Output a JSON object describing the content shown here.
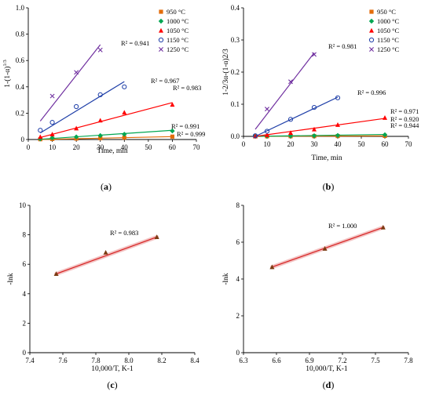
{
  "chart_data": [
    {
      "id": "a",
      "type": "scatter",
      "panel_label": "(a)",
      "panel_letter": "a",
      "xlabel": "Time, min",
      "ylabel": "1-(1-α)1/3",
      "ylabel_parts": {
        "base": "1-(1-α)",
        "sup": "1/3"
      },
      "xlim": [
        0,
        70
      ],
      "ylim": [
        0,
        1.0
      ],
      "xticks": [
        0,
        10,
        20,
        30,
        40,
        50,
        60,
        70
      ],
      "yticks": [
        0,
        0.2,
        0.4,
        0.6,
        0.8,
        1.0
      ],
      "xtick_labels": [
        "0",
        "10",
        "20",
        "30",
        "40",
        "50",
        "60",
        "70"
      ],
      "ytick_labels": [
        "0",
        "0.2",
        "0.4",
        "0.6",
        "0.8",
        "1.0"
      ],
      "grid": false,
      "legend_position": "top-right",
      "series": [
        {
          "name": "950 °C",
          "marker": "square",
          "color": "#e36c09",
          "x": [
            5,
            10,
            20,
            30,
            40,
            60
          ],
          "y": [
            0.002,
            0.004,
            0.007,
            0.01,
            0.014,
            0.022
          ],
          "fit": [
            [
              5,
              0.0
            ],
            [
              60,
              0.022
            ]
          ],
          "r2": "R² = 0.999"
        },
        {
          "name": "1000 °C",
          "marker": "diamond",
          "color": "#00a651",
          "x": [
            5,
            10,
            20,
            30,
            40,
            60
          ],
          "y": [
            0.005,
            0.012,
            0.02,
            0.03,
            0.04,
            0.065
          ],
          "fit": [
            [
              5,
              0.002
            ],
            [
              60,
              0.07
            ]
          ],
          "r2": "R² = 0.991"
        },
        {
          "name": "1050 °C",
          "marker": "triangle",
          "color": "#ff0000",
          "x": [
            5,
            10,
            20,
            30,
            40,
            60
          ],
          "y": [
            0.02,
            0.04,
            0.085,
            0.145,
            0.205,
            0.265
          ],
          "fit": [
            [
              5,
              0.015
            ],
            [
              60,
              0.28
            ]
          ],
          "r2": "R² = 0.983"
        },
        {
          "name": "1150 °C",
          "marker": "circle",
          "color": "#1f3fa8",
          "x": [
            5,
            10,
            20,
            30,
            40
          ],
          "y": [
            0.07,
            0.13,
            0.25,
            0.34,
            0.4
          ],
          "fit": [
            [
              5,
              0.05
            ],
            [
              40,
              0.44
            ]
          ],
          "r2": "R² = 0.967"
        },
        {
          "name": "1250 °C",
          "marker": "x",
          "color": "#7030a0",
          "x": [
            10,
            20,
            30
          ],
          "y": [
            0.33,
            0.51,
            0.68
          ],
          "fit": [
            [
              5,
              0.14
            ],
            [
              30,
              0.72
            ]
          ],
          "r2": "R² = 0.941"
        }
      ]
    },
    {
      "id": "b",
      "type": "scatter",
      "panel_label": "(b)",
      "panel_letter": "b",
      "xlabel": "Time, min",
      "ylabel": "1-2/3α-(1-α)2/3",
      "xlim": [
        0,
        70
      ],
      "ylim": [
        0,
        0.4
      ],
      "xticks": [
        0,
        10,
        20,
        30,
        40,
        50,
        60,
        70
      ],
      "yticks": [
        0,
        0.1,
        0.2,
        0.3,
        0.4
      ],
      "xtick_labels": [
        "0",
        "10",
        "20",
        "30",
        "40",
        "50",
        "60",
        "70"
      ],
      "ytick_labels": [
        "0.0",
        "0.1",
        "0.2",
        "0.3",
        "0.4"
      ],
      "grid": false,
      "legend_position": "top-right",
      "series": [
        {
          "name": "950 °C",
          "marker": "square",
          "color": "#e36c09",
          "x": [
            5,
            10,
            20,
            30,
            40,
            60
          ],
          "y": [
            0.0,
            0.0002,
            0.0004,
            0.0007,
            0.001,
            0.0015
          ],
          "fit": [
            [
              5,
              0.0
            ],
            [
              60,
              0.0016
            ]
          ],
          "r2": "R² = 0.944"
        },
        {
          "name": "1000 °C",
          "marker": "diamond",
          "color": "#00a651",
          "x": [
            5,
            10,
            20,
            30,
            40,
            60
          ],
          "y": [
            0.0003,
            0.0008,
            0.0015,
            0.002,
            0.003,
            0.005
          ],
          "fit": [
            [
              5,
              0.0
            ],
            [
              60,
              0.006
            ]
          ],
          "r2": "R² = 0.920"
        },
        {
          "name": "1050 °C",
          "marker": "triangle",
          "color": "#ff0000",
          "x": [
            5,
            10,
            20,
            30,
            40,
            60
          ],
          "y": [
            0.001,
            0.004,
            0.011,
            0.022,
            0.036,
            0.058
          ],
          "fit": [
            [
              5,
              0.0
            ],
            [
              60,
              0.056
            ]
          ],
          "r2": "R² = 0.971"
        },
        {
          "name": "1150 °C",
          "marker": "circle",
          "color": "#1f3fa8",
          "x": [
            5,
            10,
            20,
            30,
            40
          ],
          "y": [
            0.002,
            0.016,
            0.053,
            0.09,
            0.12
          ],
          "fit": [
            [
              5,
              0.0
            ],
            [
              40,
              0.122
            ]
          ],
          "r2": "R² = 0.996"
        },
        {
          "name": "1250 °C",
          "marker": "x",
          "color": "#7030a0",
          "x": [
            10,
            20,
            30
          ],
          "y": [
            0.085,
            0.17,
            0.255
          ],
          "fit": [
            [
              5,
              0.022
            ],
            [
              30,
              0.26
            ]
          ],
          "r2": "R² = 0.981"
        }
      ]
    },
    {
      "id": "c",
      "type": "scatter",
      "panel_label": "(c)",
      "panel_letter": "c",
      "xlabel": "10,000/T, K-1",
      "ylabel": "-lnk",
      "xlim": [
        7.4,
        8.4
      ],
      "ylim": [
        0,
        10
      ],
      "xticks": [
        7.4,
        7.6,
        7.8,
        8.0,
        8.2,
        8.4
      ],
      "yticks": [
        0,
        2,
        4,
        6,
        8,
        10
      ],
      "xtick_labels": [
        "7.4",
        "7.6",
        "7.8",
        "8.0",
        "8.2",
        "8.4"
      ],
      "ytick_labels": [
        "0",
        "2",
        "4",
        "6",
        "8",
        "10"
      ],
      "grid": false,
      "series": [
        {
          "marker": "triangle",
          "color": "#7a3b12",
          "x": [
            7.56,
            7.86,
            8.17
          ],
          "y": [
            5.35,
            6.8,
            7.85
          ],
          "fit": [
            [
              7.56,
              5.35
            ],
            [
              8.17,
              7.85
            ]
          ],
          "r2": "R² = 0.983"
        }
      ]
    },
    {
      "id": "d",
      "type": "scatter",
      "panel_label": "(d)",
      "panel_letter": "d",
      "xlabel": "10,000/T, K-1",
      "ylabel": "-lnk",
      "xlim": [
        6.3,
        7.8
      ],
      "ylim": [
        0,
        8
      ],
      "xticks": [
        6.3,
        6.6,
        6.9,
        7.2,
        7.5,
        7.8
      ],
      "yticks": [
        0,
        2,
        4,
        6,
        8
      ],
      "xtick_labels": [
        "6.3",
        "6.6",
        "6.9",
        "7.2",
        "7.5",
        "7.8"
      ],
      "ytick_labels": [
        "0",
        "2",
        "4",
        "6",
        "8"
      ],
      "grid": false,
      "series": [
        {
          "marker": "triangle",
          "color": "#7a3b12",
          "x": [
            6.56,
            7.04,
            7.57
          ],
          "y": [
            4.65,
            5.65,
            6.8
          ],
          "fit": [
            [
              6.56,
              4.65
            ],
            [
              7.57,
              6.8
            ]
          ],
          "r2": "R² = 1.000"
        }
      ]
    }
  ]
}
